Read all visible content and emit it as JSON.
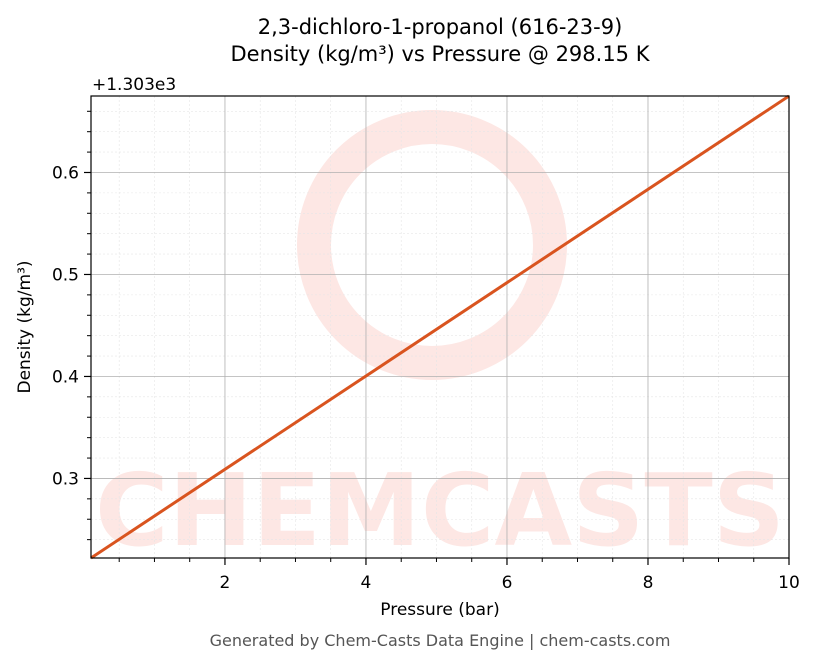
{
  "chart_data": {
    "type": "line",
    "title_line1": "2,3-dichloro-1-propanol (616-23-9)",
    "title_line2": "Density (kg/m³) vs Pressure @ 298.15 K",
    "xlabel": "Pressure (bar)",
    "ylabel": "Density (kg/m³)",
    "y_offset_label": "+1.303e3",
    "xlim": [
      0.1,
      10
    ],
    "ylim": [
      0.222,
      0.675
    ],
    "x_ticks": [
      2,
      4,
      6,
      8,
      10
    ],
    "x_tick_labels": [
      "2",
      "4",
      "6",
      "8",
      "10"
    ],
    "y_ticks": [
      0.3,
      0.4,
      0.5,
      0.6
    ],
    "y_tick_labels": [
      "0.3",
      "0.4",
      "0.5",
      "0.6"
    ],
    "grid": true,
    "series": [
      {
        "color": "#d9541f",
        "x": [
          0.1,
          10
        ],
        "y": [
          0.222,
          0.675
        ]
      }
    ]
  },
  "watermark": {
    "text": "CHEMCASTS",
    "color": "#fde7e4"
  },
  "footer": "Generated by Chem-Casts Data Engine | chem-casts.com"
}
